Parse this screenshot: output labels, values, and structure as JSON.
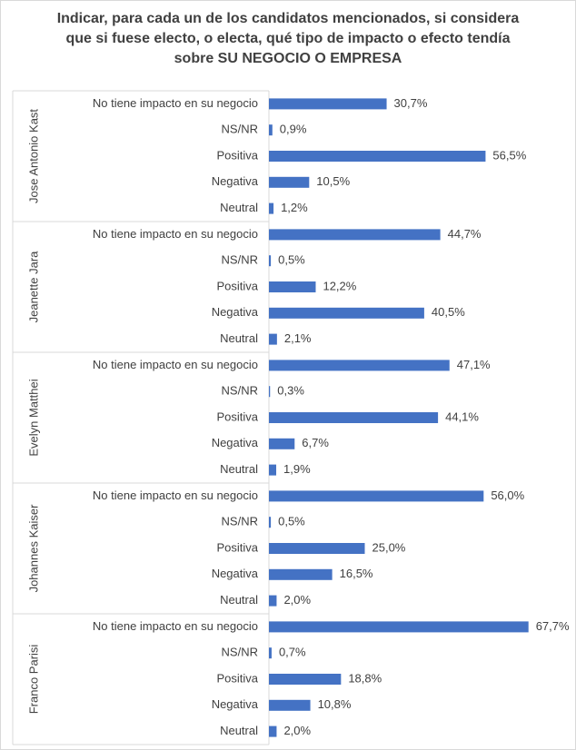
{
  "chart_data": {
    "type": "bar",
    "orientation": "horizontal",
    "title": "Indicar, para cada un de los candidatos mencionados, si considera que si fuese electo, o electa, qué tipo de impacto o  efecto tendía sobre SU NEGOCIO O EMPRESA",
    "color": "#4472c4",
    "groups": [
      {
        "name": "Jose Antonio Kast",
        "categories": [
          "No tiene impacto en su negocio",
          "NS/NR",
          "Positiva",
          "Negativa",
          "Neutral"
        ],
        "values": [
          30.7,
          0.9,
          56.5,
          10.5,
          1.2
        ],
        "value_labels": [
          "30,7%",
          "0,9%",
          "56,5%",
          "10,5%",
          "1,2%"
        ]
      },
      {
        "name": "Jeanette Jara",
        "categories": [
          "No tiene impacto en su negocio",
          "NS/NR",
          "Positiva",
          "Negativa",
          "Neutral"
        ],
        "values": [
          44.7,
          0.5,
          12.2,
          40.5,
          2.1
        ],
        "value_labels": [
          "44,7%",
          "0,5%",
          "12,2%",
          "40,5%",
          "2,1%"
        ]
      },
      {
        "name": "Evelyn Matthei",
        "categories": [
          "No tiene impacto en su negocio",
          "NS/NR",
          "Positiva",
          "Negativa",
          "Neutral"
        ],
        "values": [
          47.1,
          0.3,
          44.1,
          6.7,
          1.9
        ],
        "value_labels": [
          "47,1%",
          "0,3%",
          "44,1%",
          "6,7%",
          "1,9%"
        ]
      },
      {
        "name": "Johannes Kaiser",
        "categories": [
          "No tiene impacto en su negocio",
          "NS/NR",
          "Positiva",
          "Negativa",
          "Neutral"
        ],
        "values": [
          56.0,
          0.5,
          25.0,
          16.5,
          2.0
        ],
        "value_labels": [
          "56,0%",
          "0,5%",
          "25,0%",
          "16,5%",
          "2,0%"
        ]
      },
      {
        "name": "Franco Parisi",
        "categories": [
          "No tiene impacto en su negocio",
          "NS/NR",
          "Positiva",
          "Negativa",
          "Neutral"
        ],
        "values": [
          67.7,
          0.7,
          18.8,
          10.8,
          2.0
        ],
        "value_labels": [
          "67,7%",
          "0,7%",
          "18,8%",
          "10,8%",
          "2,0%"
        ]
      }
    ]
  }
}
